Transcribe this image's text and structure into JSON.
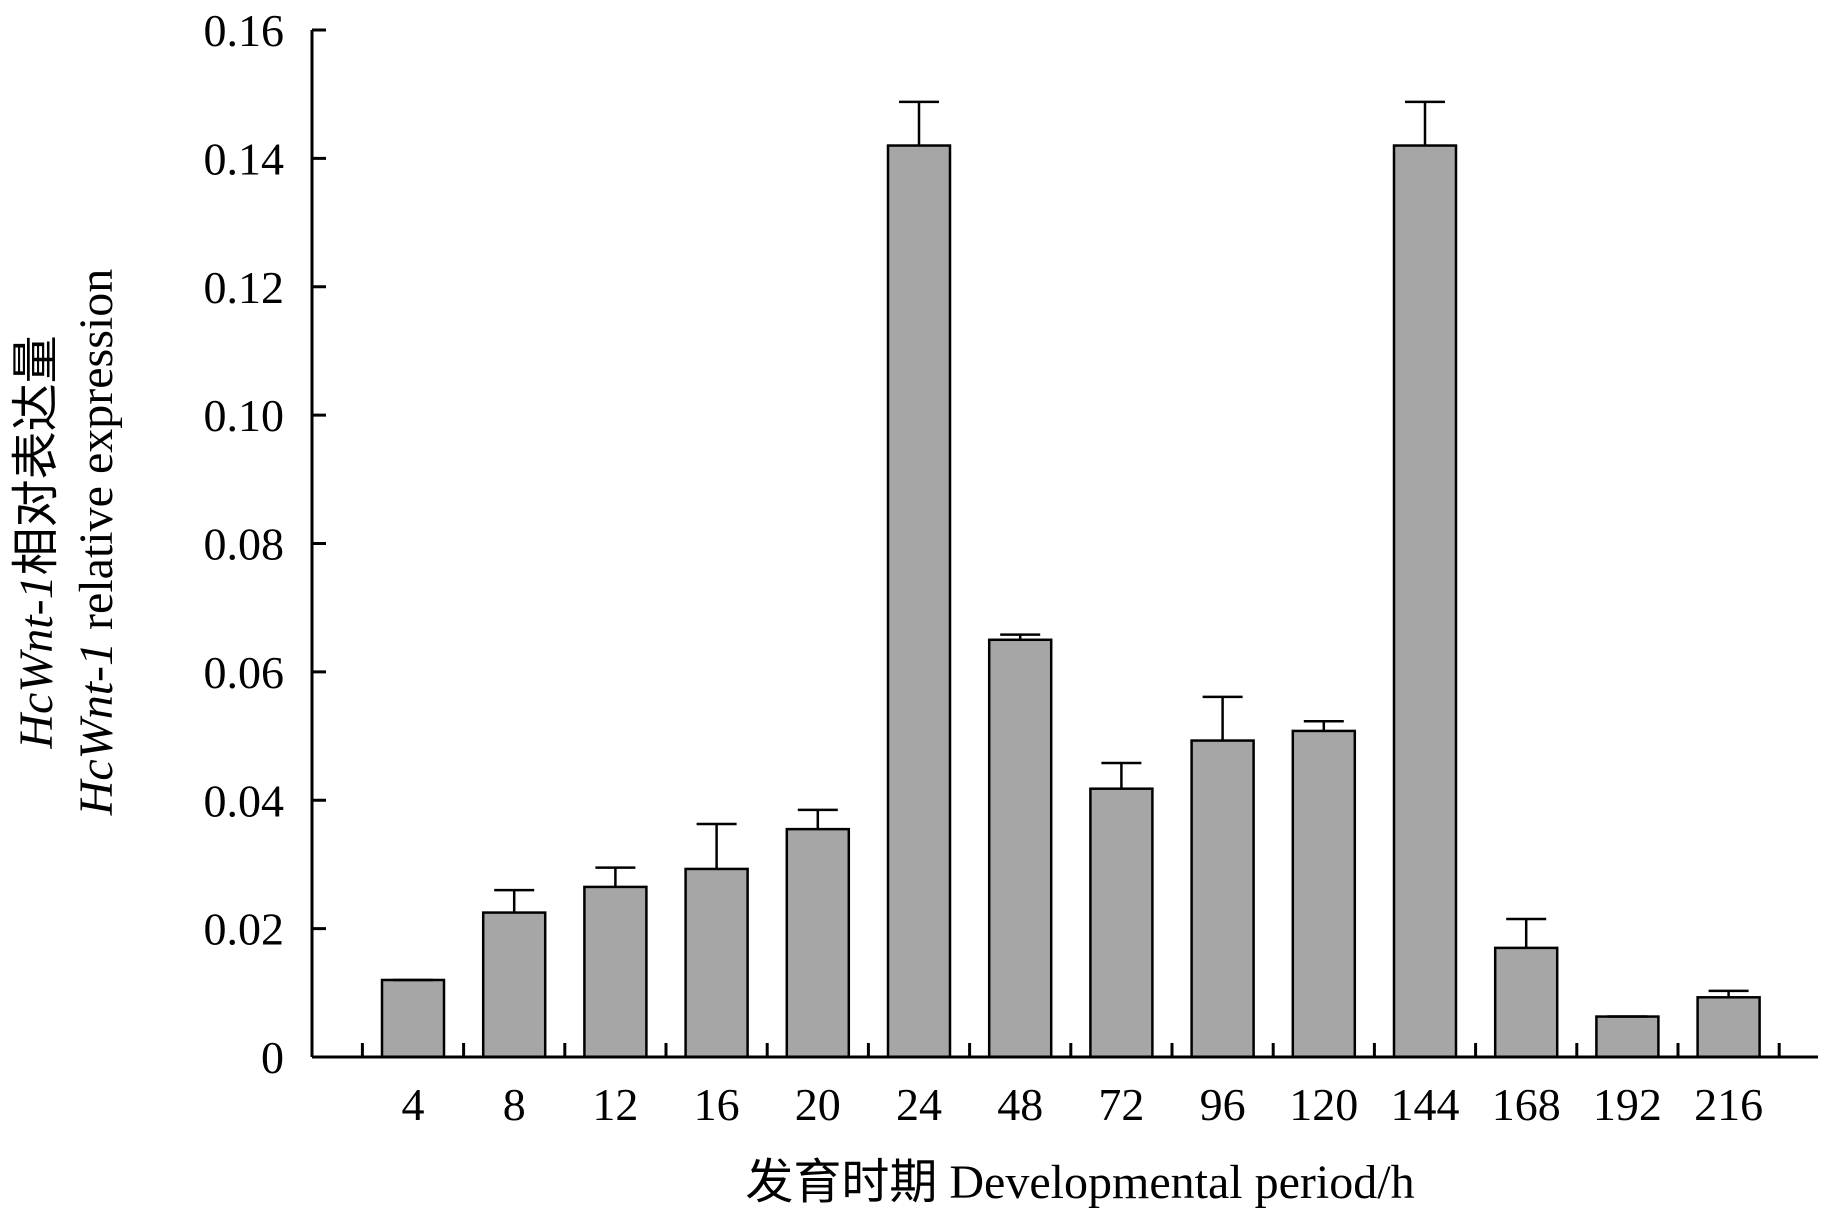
{
  "chart_data": {
    "type": "bar",
    "categories": [
      "4",
      "8",
      "12",
      "16",
      "20",
      "24",
      "48",
      "72",
      "96",
      "120",
      "144",
      "168",
      "192",
      "216"
    ],
    "values": [
      0.012,
      0.0225,
      0.0265,
      0.0293,
      0.0355,
      0.142,
      0.065,
      0.0418,
      0.0493,
      0.0508,
      0.142,
      0.017,
      0.0063,
      0.0093
    ],
    "errors": [
      0.0,
      0.0035,
      0.003,
      0.007,
      0.003,
      0.0068,
      0.0008,
      0.004,
      0.0068,
      0.0015,
      0.0068,
      0.0045,
      0.0,
      0.001
    ],
    "title": "",
    "xlabel": "发育时期 Developmental period/h",
    "ylabel": {
      "line1_italic": "HcWnt-1",
      "line1_rest": "相对表达量",
      "line2_italic": "HcWnt-1",
      "line2_rest": " relative expression"
    },
    "ylim": [
      0,
      0.16
    ],
    "yticks": [
      "0",
      "0.02",
      "0.04",
      "0.06",
      "0.08",
      "0.10",
      "0.12",
      "0.14",
      "0.16"
    ],
    "bar_color": "#a6a6a6",
    "grid": false,
    "legend": "none"
  }
}
